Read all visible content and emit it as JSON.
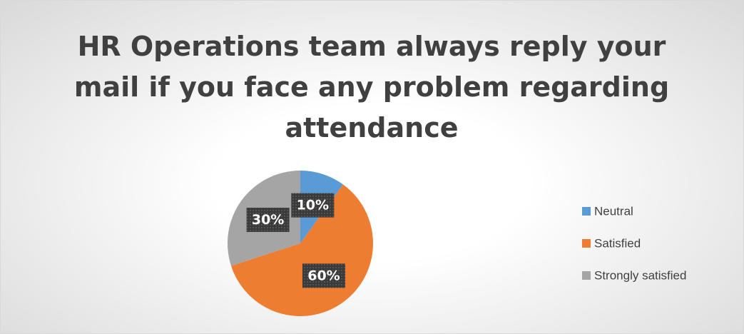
{
  "chart_data": {
    "type": "pie",
    "title": "HR Operations team always reply your mail if you face any problem regarding attendance",
    "categories": [
      "Neutral",
      "Satisfied",
      "Strongly satisfied"
    ],
    "values": [
      10,
      60,
      30
    ],
    "value_labels": [
      "10%",
      "60%",
      "30%"
    ],
    "colors": [
      "#5b9bd5",
      "#ed7d31",
      "#a5a5a5"
    ],
    "legend": "right"
  }
}
